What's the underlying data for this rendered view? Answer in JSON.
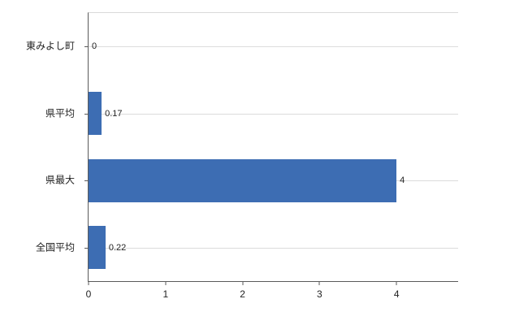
{
  "chart_data": {
    "type": "bar",
    "orientation": "horizontal",
    "title": "",
    "categories": [
      "東みよし町",
      "県平均",
      "県最大",
      "全国平均"
    ],
    "values": [
      0,
      0.17,
      4,
      0.22
    ],
    "value_labels": [
      "0",
      "0.17",
      "4",
      "0.22"
    ],
    "xlim": [
      0,
      4.8
    ],
    "xticks": [
      0,
      1,
      2,
      3,
      4
    ],
    "bar_color": "#3d6db3",
    "gridline_color": "#dcdcdc",
    "axis_color": "#5a5a5a",
    "grid": true,
    "legend": "none"
  }
}
